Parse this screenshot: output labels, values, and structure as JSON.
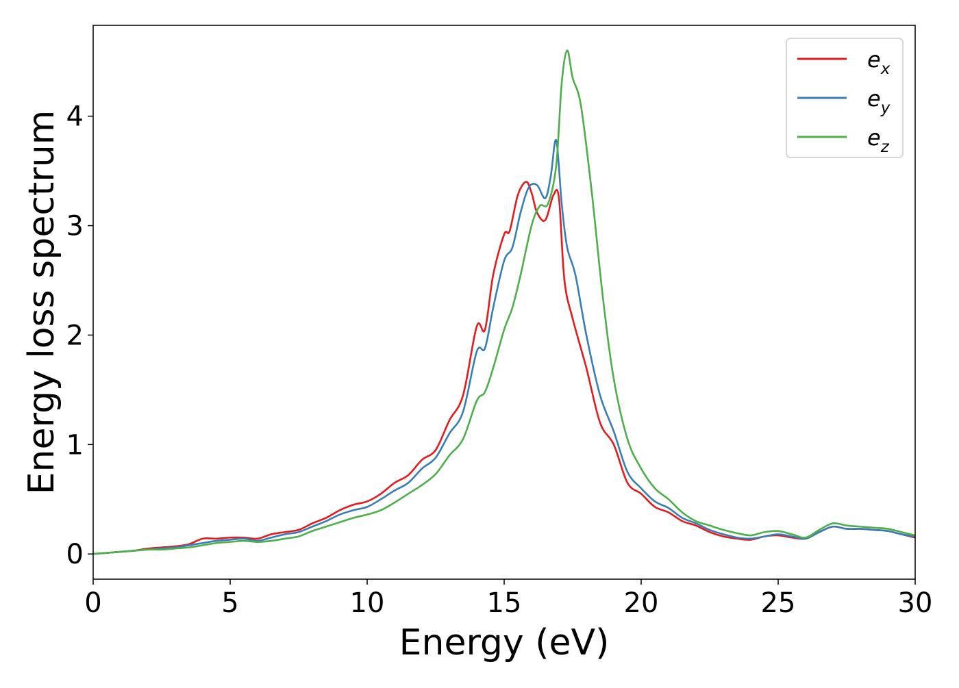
{
  "chart_data": {
    "type": "line",
    "title": "",
    "xlabel": "Energy (eV)",
    "ylabel": "Energy loss spectrum",
    "xlim": [
      0,
      30
    ],
    "ylim": [
      -0.23,
      4.83
    ],
    "xticks": [
      0,
      5,
      10,
      15,
      20,
      25,
      30
    ],
    "yticks": [
      0,
      1,
      2,
      3,
      4
    ],
    "xtick_labels": [
      "0",
      "5",
      "10",
      "15",
      "20",
      "25",
      "30"
    ],
    "ytick_labels": [
      "0",
      "1",
      "2",
      "3",
      "4"
    ],
    "grid": false,
    "legend_position": "top-right",
    "series": [
      {
        "name": "e_x",
        "legend": {
          "base": "e",
          "sub": "x"
        },
        "color": "#e41a1c",
        "x": [
          0,
          0.5,
          1,
          1.5,
          2,
          2.5,
          3,
          3.5,
          4,
          4.5,
          5,
          5.5,
          6,
          6.5,
          7,
          7.5,
          8,
          8.5,
          9,
          9.5,
          10,
          10.5,
          11,
          11.5,
          12,
          12.5,
          13,
          13.5,
          14,
          14.3,
          14.6,
          15,
          15.2,
          15.5,
          15.8,
          16,
          16.2,
          16.5,
          16.8,
          17,
          17.2,
          17.5,
          18,
          18.5,
          19,
          19.5,
          20,
          20.5,
          21,
          21.5,
          22,
          22.5,
          23,
          23.5,
          24,
          24.5,
          25,
          25.5,
          26,
          26.5,
          27,
          27.5,
          28,
          28.5,
          29,
          29.5,
          30
        ],
        "y": [
          0.0,
          0.01,
          0.02,
          0.03,
          0.05,
          0.06,
          0.07,
          0.09,
          0.14,
          0.14,
          0.15,
          0.15,
          0.14,
          0.18,
          0.2,
          0.22,
          0.28,
          0.33,
          0.4,
          0.45,
          0.48,
          0.55,
          0.65,
          0.72,
          0.86,
          0.95,
          1.22,
          1.45,
          2.08,
          2.05,
          2.55,
          2.92,
          2.95,
          3.28,
          3.4,
          3.3,
          3.12,
          3.05,
          3.28,
          3.25,
          2.5,
          2.15,
          1.7,
          1.2,
          1.0,
          0.65,
          0.55,
          0.43,
          0.38,
          0.3,
          0.26,
          0.2,
          0.16,
          0.14,
          0.13,
          0.16,
          0.17,
          0.15,
          0.14,
          0.2,
          0.25,
          0.23,
          0.23,
          0.22,
          0.21,
          0.18,
          0.15
        ]
      },
      {
        "name": "e_y",
        "legend": {
          "base": "e",
          "sub": "y"
        },
        "color": "#377eb8",
        "x": [
          0,
          0.5,
          1,
          1.5,
          2,
          2.5,
          3,
          3.5,
          4,
          4.5,
          5,
          5.5,
          6,
          6.5,
          7,
          7.5,
          8,
          8.5,
          9,
          9.5,
          10,
          10.5,
          11,
          11.5,
          12,
          12.5,
          13,
          13.5,
          14,
          14.3,
          14.6,
          15,
          15.3,
          15.6,
          15.9,
          16.2,
          16.5,
          16.7,
          16.9,
          17.1,
          17.3,
          17.6,
          18,
          18.5,
          19,
          19.5,
          20,
          20.5,
          21,
          21.5,
          22,
          22.5,
          23,
          23.5,
          24,
          24.5,
          25,
          25.5,
          26,
          26.5,
          27,
          27.5,
          28,
          28.5,
          29,
          29.5,
          30
        ],
        "y": [
          0.0,
          0.01,
          0.02,
          0.03,
          0.04,
          0.05,
          0.06,
          0.08,
          0.1,
          0.12,
          0.13,
          0.14,
          0.12,
          0.15,
          0.18,
          0.2,
          0.25,
          0.3,
          0.36,
          0.4,
          0.43,
          0.5,
          0.58,
          0.65,
          0.78,
          0.88,
          1.1,
          1.3,
          1.85,
          1.88,
          2.25,
          2.68,
          2.8,
          3.12,
          3.35,
          3.37,
          3.25,
          3.45,
          3.78,
          3.2,
          2.8,
          2.55,
          2.0,
          1.45,
          1.12,
          0.75,
          0.6,
          0.48,
          0.42,
          0.33,
          0.28,
          0.22,
          0.18,
          0.15,
          0.14,
          0.16,
          0.18,
          0.16,
          0.14,
          0.2,
          0.25,
          0.23,
          0.23,
          0.22,
          0.21,
          0.18,
          0.16
        ]
      },
      {
        "name": "e_z",
        "legend": {
          "base": "e",
          "sub": "z"
        },
        "color": "#4daf4a",
        "x": [
          0,
          0.5,
          1,
          1.5,
          2,
          2.5,
          3,
          3.5,
          4,
          4.5,
          5,
          5.5,
          6,
          6.5,
          7,
          7.5,
          8,
          8.5,
          9,
          9.5,
          10,
          10.5,
          11,
          11.5,
          12,
          12.5,
          13,
          13.5,
          14,
          14.3,
          14.6,
          15,
          15.3,
          15.6,
          16,
          16.3,
          16.6,
          16.9,
          17.1,
          17.3,
          17.5,
          17.8,
          18.2,
          18.6,
          19,
          19.5,
          20,
          20.5,
          21,
          21.5,
          22,
          22.5,
          23,
          23.5,
          24,
          24.5,
          25,
          25.5,
          26,
          26.5,
          27,
          27.5,
          28,
          28.5,
          29,
          29.5,
          30
        ],
        "y": [
          0.0,
          0.01,
          0.02,
          0.03,
          0.04,
          0.04,
          0.05,
          0.06,
          0.08,
          0.1,
          0.11,
          0.12,
          0.11,
          0.12,
          0.14,
          0.16,
          0.21,
          0.25,
          0.29,
          0.33,
          0.36,
          0.4,
          0.47,
          0.55,
          0.63,
          0.73,
          0.9,
          1.05,
          1.4,
          1.48,
          1.7,
          2.05,
          2.25,
          2.55,
          3.0,
          3.18,
          3.2,
          3.55,
          4.3,
          4.6,
          4.35,
          4.1,
          3.3,
          2.35,
          1.6,
          1.05,
          0.78,
          0.6,
          0.5,
          0.38,
          0.3,
          0.26,
          0.22,
          0.19,
          0.17,
          0.2,
          0.21,
          0.18,
          0.15,
          0.22,
          0.28,
          0.26,
          0.25,
          0.24,
          0.23,
          0.2,
          0.17
        ]
      }
    ]
  }
}
